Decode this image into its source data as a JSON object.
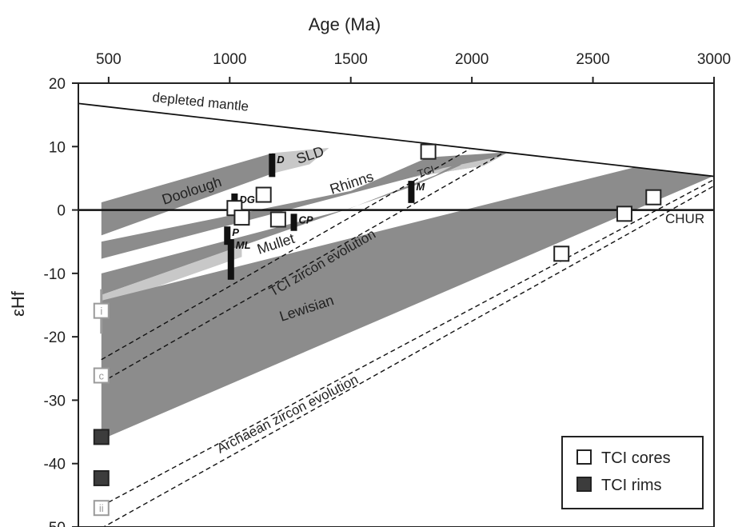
{
  "chart_data": {
    "type": "scatter",
    "xlabel": "Age (Ma)",
    "ylabel": "εHf",
    "xlim": [
      375,
      3000
    ],
    "ylim": [
      -50,
      20
    ],
    "xticks": [
      500,
      1000,
      1500,
      2000,
      2500,
      3000
    ],
    "yticks": [
      20,
      10,
      0,
      -10,
      -20,
      -30,
      -40,
      -50
    ],
    "grid": false,
    "legend_position": "bottom-right",
    "colors": {
      "band_dark": "#8c8c8c",
      "band_light": "#c8c8c8",
      "core_fill": "#ffffff",
      "rim_fill": "#3c3c3c",
      "marker_edge": "#222222",
      "inherited_marker": "#9a9a9a",
      "bar": "#111111"
    },
    "legend": [
      {
        "label": "TCI cores",
        "marker": "open-square"
      },
      {
        "label": "TCI rims",
        "marker": "filled-square"
      }
    ],
    "reference_lines": [
      {
        "label": "depleted mantle",
        "points": [
          [
            375,
            16.8
          ],
          [
            3000,
            5.3
          ]
        ],
        "style": "solid"
      },
      {
        "label": "CHUR",
        "points": [
          [
            375,
            0
          ],
          [
            3000,
            0
          ]
        ],
        "style": "solid"
      }
    ],
    "evolution_lines": [
      {
        "label": "TCI zircon evolution",
        "pairs": [
          [
            [
              470,
              -23.6
            ],
            [
              1990,
              9.6
            ]
          ],
          [
            [
              470,
              -27.2
            ],
            [
              2130,
              9.0
            ]
          ]
        ]
      },
      {
        "label": "Archaean zircon evolution",
        "pairs": [
          [
            [
              470,
              -46.7
            ],
            [
              3000,
              4.8
            ]
          ],
          [
            [
              470,
              -50.2
            ],
            [
              3000,
              3.8
            ]
          ]
        ]
      }
    ],
    "bands": [
      {
        "label": "Doolough",
        "tone": "dark",
        "polygon": [
          [
            470,
            1.2
          ],
          [
            1180,
            9.0
          ],
          [
            1180,
            5.8
          ],
          [
            470,
            -4.0
          ]
        ]
      },
      {
        "label": "SLD",
        "tone": "light",
        "polygon": [
          [
            1180,
            9.0
          ],
          [
            1410,
            9.8
          ],
          [
            1330,
            7.2
          ],
          [
            1180,
            5.8
          ]
        ]
      },
      {
        "label": "Rhinns",
        "tone": "dark",
        "polygon": [
          [
            470,
            -5.0
          ],
          [
            1500,
            3.0
          ],
          [
            1820,
            8.3
          ],
          [
            2150,
            9.1
          ],
          [
            2050,
            7.0
          ],
          [
            1760,
            5.2
          ],
          [
            470,
            -7.7
          ]
        ]
      },
      {
        "label": "",
        "tone": "light",
        "polygon": [
          [
            1760,
            5.2
          ],
          [
            2050,
            7.0
          ],
          [
            2150,
            9.1
          ],
          [
            2110,
            8.4
          ],
          [
            1880,
            6.6
          ]
        ]
      },
      {
        "label": "Mullet",
        "tone": "dark",
        "polygon": [
          [
            470,
            -10.0
          ],
          [
            1500,
            0.3
          ],
          [
            1850,
            5.5
          ],
          [
            2000,
            8.6
          ],
          [
            1950,
            7.0
          ],
          [
            1760,
            3.8
          ],
          [
            470,
            -13.4
          ]
        ]
      },
      {
        "label": "",
        "tone": "light",
        "polygon": [
          [
            470,
            -13.4
          ],
          [
            1050,
            -5.6
          ],
          [
            1050,
            -7.4
          ],
          [
            470,
            -15.2
          ]
        ]
      },
      {
        "label": "Lewisian",
        "tone": "dark",
        "polygon": [
          [
            470,
            -14.3
          ],
          [
            2670,
            6.7
          ],
          [
            3000,
            5.4
          ],
          [
            470,
            -36.2
          ]
        ]
      }
    ],
    "series": [
      {
        "name": "TCI cores",
        "marker": "open-square",
        "points": [
          [
            1820,
            9.2
          ],
          [
            1140,
            2.4
          ],
          [
            1020,
            0.3
          ],
          [
            1050,
            -1.2
          ],
          [
            1200,
            -1.5
          ],
          [
            2370,
            -6.9
          ],
          [
            2630,
            -0.6
          ],
          [
            2750,
            2.0
          ]
        ]
      },
      {
        "name": "TCI rims",
        "marker": "filled-square",
        "points": [
          [
            470,
            -35.8
          ],
          [
            470,
            -42.3
          ]
        ]
      }
    ],
    "inherited_markers": [
      {
        "label": "i",
        "x": 470,
        "y": -15.9
      },
      {
        "label": "c",
        "x": 470,
        "y": -26.1
      },
      {
        "label": "ii",
        "x": 470,
        "y": -47.0
      }
    ],
    "age_bars": [
      {
        "label": "D",
        "x": 1175,
        "y1": 5.2,
        "y2": 8.9
      },
      {
        "label": "DG",
        "x": 1020,
        "y1": 1.0,
        "y2": 2.6
      },
      {
        "label": "P",
        "x": 990,
        "y1": -5.5,
        "y2": -2.6
      },
      {
        "label": "ML",
        "x": 1005,
        "y1": -11.0,
        "y2": -4.6
      },
      {
        "label": "CP",
        "x": 1265,
        "y1": -3.3,
        "y2": -0.6
      },
      {
        "label": "M",
        "x": 1750,
        "y1": 1.1,
        "y2": 4.6
      }
    ],
    "gray_whisker": {
      "x": 470,
      "y1": -19.5,
      "y2": -12.5
    },
    "text_labels": {
      "tci": "TCI"
    }
  }
}
